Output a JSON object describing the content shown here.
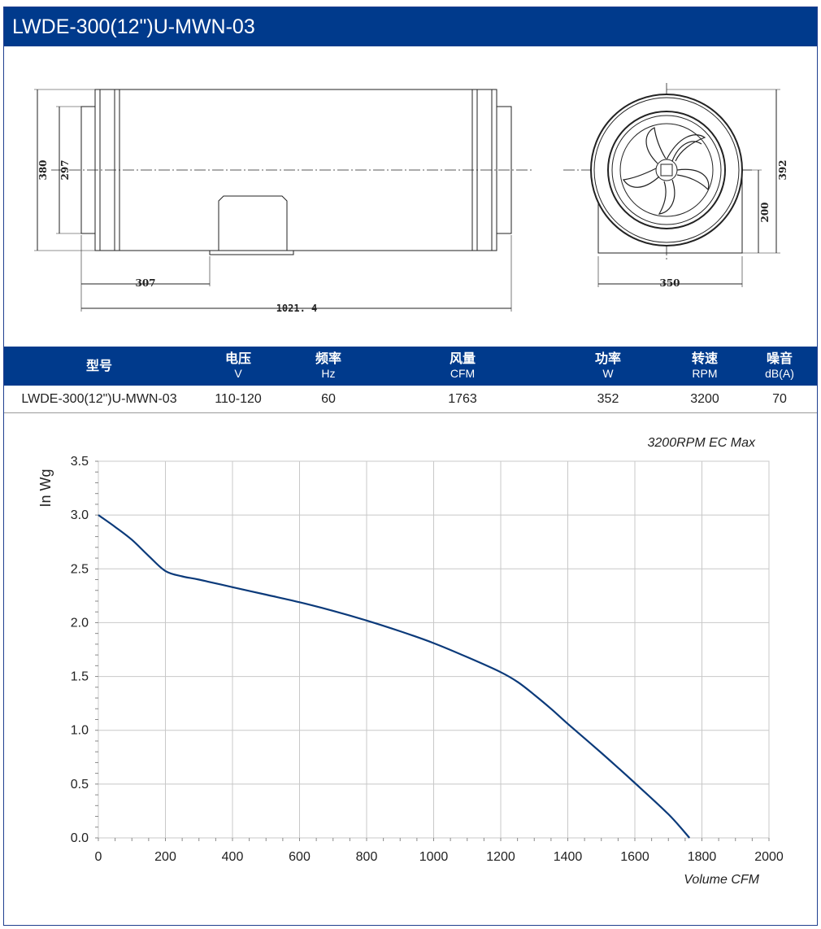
{
  "title": "LWDE-300(12\")U-MWN-03",
  "drawing": {
    "dim_380": "380",
    "dim_297": "297",
    "dim_307": "307",
    "dim_1021": "1021. 4",
    "dim_392": "392",
    "dim_200": "200",
    "dim_350": "350"
  },
  "spec_table": {
    "headers": [
      {
        "label": "型号",
        "unit": ""
      },
      {
        "label": "电压",
        "unit": "V"
      },
      {
        "label": "频率",
        "unit": "Hz"
      },
      {
        "label": "风量",
        "unit": "CFM"
      },
      {
        "label": "功率",
        "unit": "W"
      },
      {
        "label": "转速",
        "unit": "RPM"
      },
      {
        "label": "噪音",
        "unit": "dB(A)"
      }
    ],
    "row": [
      "LWDE-300(12\")U-MWN-03",
      "110-120",
      "60",
      "1763",
      "352",
      "3200",
      "70"
    ]
  },
  "colors": {
    "brand": "#003a8c",
    "curve": "#0b3a7a",
    "grid": "#c8c8c8"
  },
  "chart_data": {
    "type": "line",
    "annotation": "3200RPM EC Max",
    "xlabel": "Volume CFM",
    "ylabel": "In Wg",
    "xlim": [
      0,
      2000
    ],
    "ylim": [
      0,
      3.5
    ],
    "xticks": [
      "0",
      "200",
      "400",
      "600",
      "800",
      "1000",
      "1200",
      "1400",
      "1600",
      "1800",
      "2000"
    ],
    "yticks": [
      "0.0",
      "0.5",
      "1.0",
      "1.5",
      "2.0",
      "2.5",
      "3.0",
      "3.5"
    ],
    "grid": true,
    "series": [
      {
        "x": [
          0,
          50,
          100,
          150,
          200,
          250,
          300,
          400,
          500,
          600,
          700,
          800,
          900,
          1000,
          1100,
          1200,
          1250,
          1300,
          1350,
          1400,
          1500,
          1600,
          1700,
          1763
        ],
        "values": [
          3.0,
          2.89,
          2.77,
          2.62,
          2.48,
          2.43,
          2.4,
          2.33,
          2.26,
          2.19,
          2.11,
          2.02,
          1.92,
          1.81,
          1.68,
          1.54,
          1.45,
          1.33,
          1.2,
          1.06,
          0.79,
          0.51,
          0.22,
          0.0
        ]
      }
    ]
  }
}
